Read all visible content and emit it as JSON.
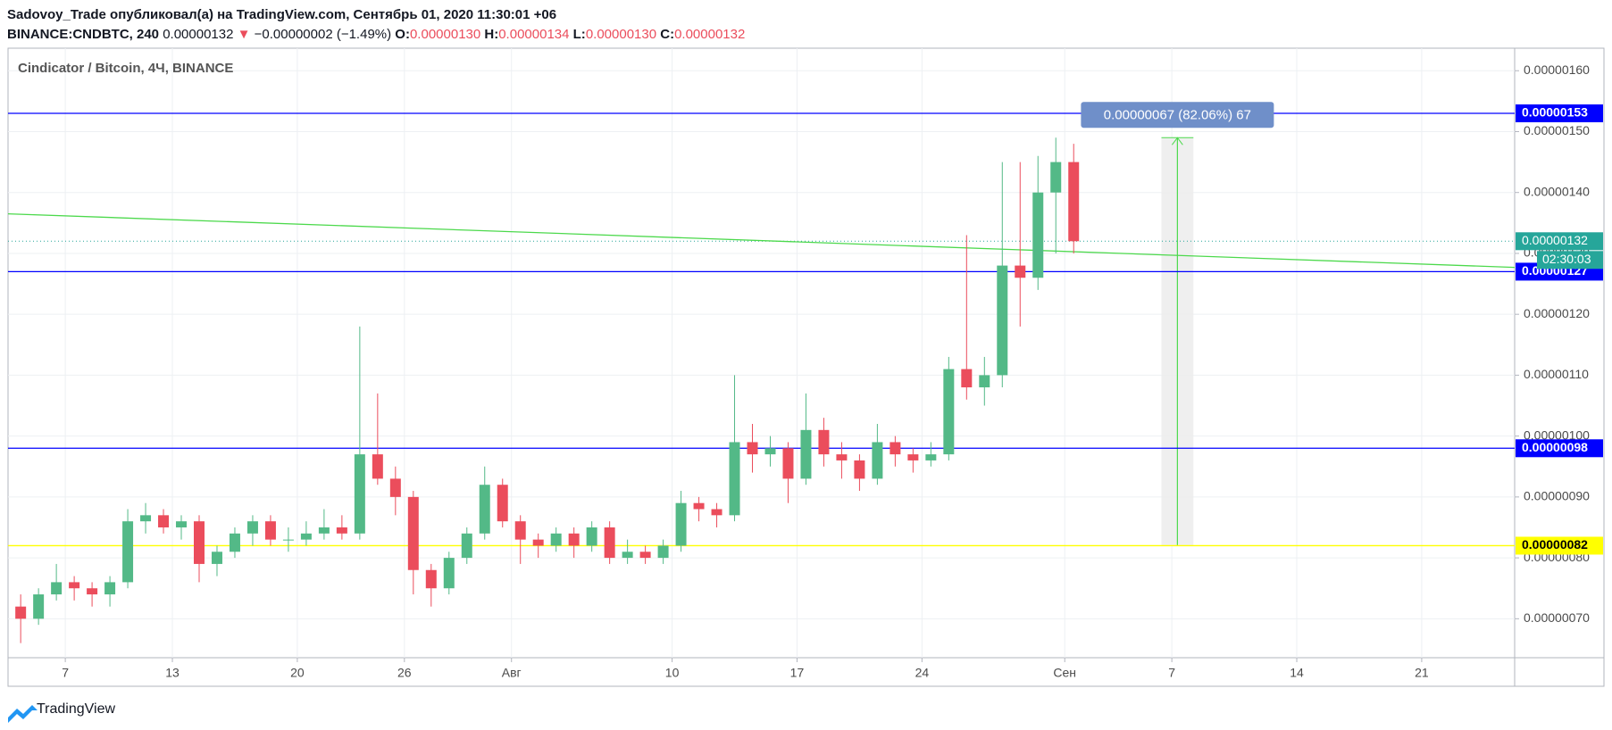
{
  "header": {
    "author_line": "Sadovoy_Trade опубликовал(а) на TradingView.com, Сентябрь 01, 2020 11:30:01 +06",
    "symbol": "BINANCE:CNDBTC, 240",
    "last": "0.00000132",
    "arrow": "▼",
    "change": "−0.00000002 (−1.49%)",
    "o_label": "O:",
    "o": "0.00000130",
    "h_label": "H:",
    "h": "0.00000134",
    "l_label": "L:",
    "l": "0.00000130",
    "c_label": "C:",
    "c": "0.00000132"
  },
  "chart_data": {
    "type": "candlestick",
    "legend": "Cindicator / Bitcoin, 4Ч, BINANCE",
    "up_color": "#53b987",
    "down_color": "#eb4d5c",
    "grid": true,
    "x": [
      "2020-07-04",
      "2020-07-05",
      "2020-07-06",
      "2020-07-07",
      "2020-07-08",
      "2020-07-09",
      "2020-07-10",
      "2020-07-11",
      "2020-07-12",
      "2020-07-13",
      "2020-07-14",
      "2020-07-15",
      "2020-07-16",
      "2020-07-17",
      "2020-07-18",
      "2020-07-19",
      "2020-07-20",
      "2020-07-21",
      "2020-07-22",
      "2020-07-23",
      "2020-07-24",
      "2020-07-25",
      "2020-07-26",
      "2020-07-27",
      "2020-07-28",
      "2020-07-29",
      "2020-07-30",
      "2020-07-31",
      "2020-08-01",
      "2020-08-02",
      "2020-08-03",
      "2020-08-04",
      "2020-08-05",
      "2020-08-06",
      "2020-08-07",
      "2020-08-08",
      "2020-08-09",
      "2020-08-10",
      "2020-08-11",
      "2020-08-12",
      "2020-08-13",
      "2020-08-14",
      "2020-08-15",
      "2020-08-16",
      "2020-08-17",
      "2020-08-18",
      "2020-08-19",
      "2020-08-20",
      "2020-08-21",
      "2020-08-22",
      "2020-08-23",
      "2020-08-24",
      "2020-08-25",
      "2020-08-26",
      "2020-08-27",
      "2020-08-28",
      "2020-08-29",
      "2020-08-30",
      "2020-08-31",
      "2020-09-01"
    ],
    "open": [
      7.2e-07,
      7e-07,
      7.4e-07,
      7.6e-07,
      7.5e-07,
      7.4e-07,
      7.6e-07,
      8.6e-07,
      8.7e-07,
      8.5e-07,
      8.6e-07,
      7.9e-07,
      8.1e-07,
      8.4e-07,
      8.6e-07,
      8.3e-07,
      8.3e-07,
      8.4e-07,
      8.5e-07,
      8.4e-07,
      9.7e-07,
      9.3e-07,
      9e-07,
      7.8e-07,
      7.5e-07,
      8e-07,
      8.4e-07,
      9.2e-07,
      8.6e-07,
      8.3e-07,
      8.2e-07,
      8.4e-07,
      8.2e-07,
      8.5e-07,
      8e-07,
      8.1e-07,
      8e-07,
      8.2e-07,
      8.9e-07,
      8.8e-07,
      8.7e-07,
      9.9e-07,
      9.7e-07,
      9.8e-07,
      9.3e-07,
      1.01e-06,
      9.7e-07,
      9.6e-07,
      9.3e-07,
      9.9e-07,
      9.7e-07,
      9.6e-07,
      9.7e-07,
      1.11e-06,
      1.08e-06,
      1.1e-06,
      1.28e-06,
      1.26e-06,
      1.4e-06,
      1.45e-06
    ],
    "high": [
      7.4e-07,
      7.5e-07,
      7.9e-07,
      7.7e-07,
      7.6e-07,
      7.7e-07,
      8.8e-07,
      8.9e-07,
      8.8e-07,
      8.7e-07,
      8.7e-07,
      8.2e-07,
      8.5e-07,
      8.7e-07,
      8.7e-07,
      8.5e-07,
      8.6e-07,
      8.8e-07,
      8.7e-07,
      1.18e-06,
      1.07e-06,
      9.5e-07,
      9.1e-07,
      7.9e-07,
      8.1e-07,
      8.5e-07,
      9.5e-07,
      9.3e-07,
      8.7e-07,
      8.4e-07,
      8.5e-07,
      8.5e-07,
      8.6e-07,
      8.6e-07,
      8.3e-07,
      8.2e-07,
      8.3e-07,
      9.1e-07,
      9e-07,
      8.9e-07,
      1.1e-06,
      1.02e-06,
      1e-06,
      9.9e-07,
      1.07e-06,
      1.03e-06,
      9.9e-07,
      9.7e-07,
      1.02e-06,
      1e-06,
      9.8e-07,
      9.9e-07,
      1.13e-06,
      1.33e-06,
      1.13e-06,
      1.45e-06,
      1.45e-06,
      1.46e-06,
      1.49e-06,
      1.48e-06
    ],
    "low": [
      6.6e-07,
      6.9e-07,
      7.3e-07,
      7.3e-07,
      7.2e-07,
      7.2e-07,
      7.5e-07,
      8.4e-07,
      8.4e-07,
      8.3e-07,
      7.6e-07,
      7.7e-07,
      8e-07,
      8.2e-07,
      8.2e-07,
      8.1e-07,
      8.2e-07,
      8.3e-07,
      8.3e-07,
      8.3e-07,
      9.2e-07,
      8.7e-07,
      7.4e-07,
      7.2e-07,
      7.4e-07,
      7.9e-07,
      8.3e-07,
      8.5e-07,
      7.9e-07,
      8e-07,
      8.1e-07,
      8e-07,
      8.1e-07,
      7.9e-07,
      7.9e-07,
      7.9e-07,
      7.9e-07,
      8.1e-07,
      8.6e-07,
      8.5e-07,
      8.6e-07,
      9.4e-07,
      9.5e-07,
      8.9e-07,
      9.2e-07,
      9.5e-07,
      9.3e-07,
      9.1e-07,
      9.2e-07,
      9.5e-07,
      9.4e-07,
      9.5e-07,
      9.6e-07,
      1.06e-06,
      1.05e-06,
      1.08e-06,
      1.18e-06,
      1.24e-06,
      1.3e-06,
      1.3e-06
    ],
    "close": [
      7e-07,
      7.4e-07,
      7.6e-07,
      7.5e-07,
      7.4e-07,
      7.6e-07,
      8.6e-07,
      8.7e-07,
      8.5e-07,
      8.6e-07,
      7.9e-07,
      8.1e-07,
      8.4e-07,
      8.6e-07,
      8.3e-07,
      8.3e-07,
      8.4e-07,
      8.5e-07,
      8.4e-07,
      9.7e-07,
      9.3e-07,
      9e-07,
      7.8e-07,
      7.5e-07,
      8e-07,
      8.4e-07,
      9.2e-07,
      8.6e-07,
      8.3e-07,
      8.2e-07,
      8.4e-07,
      8.2e-07,
      8.5e-07,
      8e-07,
      8.1e-07,
      8e-07,
      8.2e-07,
      8.9e-07,
      8.8e-07,
      8.7e-07,
      9.9e-07,
      9.7e-07,
      9.8e-07,
      9.3e-07,
      1.01e-06,
      9.7e-07,
      9.6e-07,
      9.3e-07,
      9.9e-07,
      9.7e-07,
      9.6e-07,
      9.7e-07,
      1.11e-06,
      1.08e-06,
      1.1e-06,
      1.28e-06,
      1.26e-06,
      1.4e-06,
      1.45e-06,
      1.32e-06
    ],
    "xlim": [
      "2020-07-03T19:00",
      "2020-09-26T05:00"
    ],
    "xticks": [
      {
        "value": "2020-07-07",
        "label": "7"
      },
      {
        "value": "2020-07-13",
        "label": "13"
      },
      {
        "value": "2020-07-20",
        "label": "20"
      },
      {
        "value": "2020-07-26",
        "label": "26"
      },
      {
        "value": "2020-08-01",
        "label": "Авг"
      },
      {
        "value": "2020-08-10",
        "label": "10"
      },
      {
        "value": "2020-08-17",
        "label": "17"
      },
      {
        "value": "2020-08-24",
        "label": "24"
      },
      {
        "value": "2020-09-01",
        "label": "Сен"
      },
      {
        "value": "2020-09-07",
        "label": "7"
      },
      {
        "value": "2020-09-14",
        "label": "14"
      },
      {
        "value": "2020-09-21",
        "label": "21"
      }
    ],
    "ylim": [
      6.36e-07,
      1.637e-06
    ],
    "yticks": [
      {
        "value": 7e-07,
        "label": "0.00000070"
      },
      {
        "value": 8e-07,
        "label": "0.00000080"
      },
      {
        "value": 9e-07,
        "label": "0.00000090"
      },
      {
        "value": 1e-06,
        "label": "0.00000100"
      },
      {
        "value": 1.1e-06,
        "label": "0.00000110"
      },
      {
        "value": 1.2e-06,
        "label": "0.00000120"
      },
      {
        "value": 1.3e-06,
        "label": "0.00000130"
      },
      {
        "value": 1.4e-06,
        "label": "0.00000140"
      },
      {
        "value": 1.5e-06,
        "label": "0.00000150"
      },
      {
        "value": 1.6e-06,
        "label": "0.00000160"
      }
    ],
    "hlines": [
      {
        "value": 1.53e-06,
        "label": "0.00000153",
        "color": "#0000ff"
      },
      {
        "value": 1.27e-06,
        "label": "0.00000127",
        "color": "#0000ff"
      },
      {
        "value": 9.8e-07,
        "label": "0.00000098",
        "color": "#0000ff"
      },
      {
        "value": 8.2e-07,
        "label": "0.00000082",
        "color": "#ffff00"
      }
    ],
    "price_line": {
      "value": 1.32e-06,
      "label": "0.00000132",
      "countdown": "02:30:03",
      "color": "#26a69a"
    },
    "trendline": {
      "x": [
        "2020-07-03T19:00",
        "2020-09-26T05:00"
      ],
      "values": [
        1.365e-06,
        1.277e-06
      ],
      "color": "#4cd94c"
    },
    "measure": {
      "x": [
        "2020-09-06T10:00",
        "2020-09-08T05:00"
      ],
      "values": [
        8.2e-07,
        1.49e-06
      ],
      "label": "0.00000067 (82.06%) 67",
      "color": "#6f8fc9"
    }
  },
  "footer": {
    "brand": "TradingView"
  }
}
